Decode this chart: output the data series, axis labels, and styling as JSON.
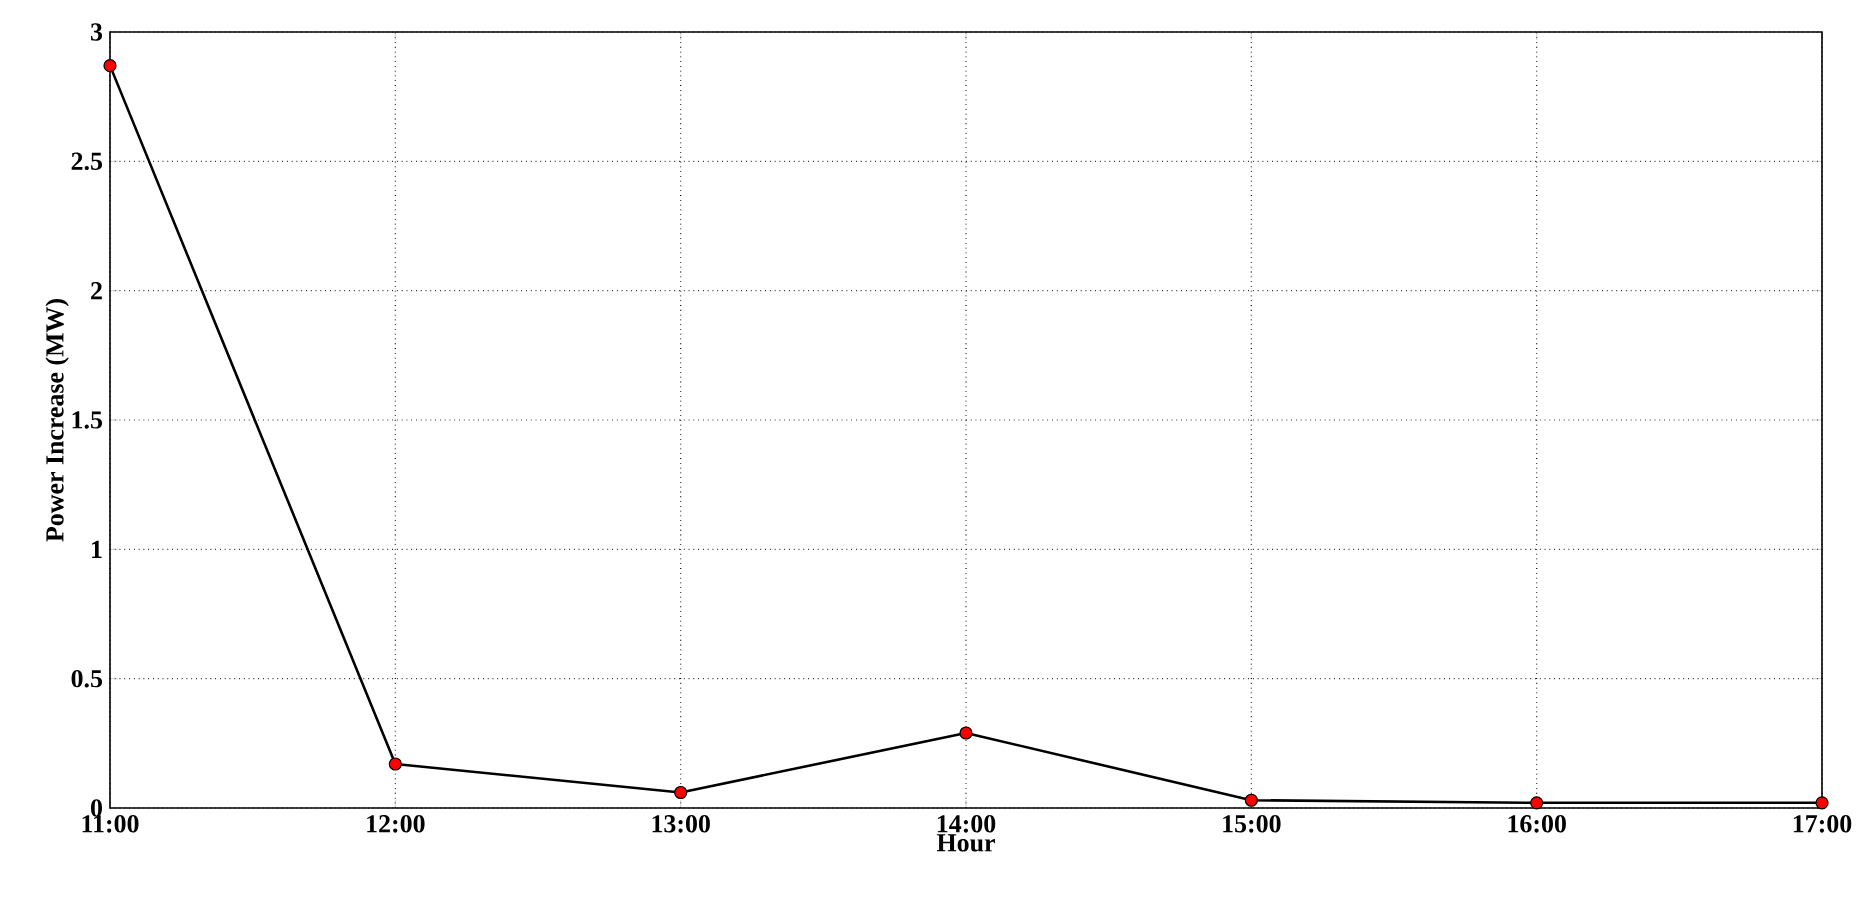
{
  "chart_data": {
    "type": "line",
    "xlabel": "Hour",
    "ylabel": "Power Increase (MW)",
    "x": [
      11,
      12,
      13,
      14,
      15,
      16,
      17
    ],
    "series": [
      {
        "color": "#000000",
        "values": [
          2.87,
          0.17,
          0.06,
          0.29,
          0.03,
          0.02,
          0.02
        ]
      }
    ],
    "xlim": [
      11,
      17
    ],
    "ylim": [
      0,
      3
    ],
    "xticks": [
      {
        "value": 11,
        "label": "11:00"
      },
      {
        "value": 12,
        "label": "12:00"
      },
      {
        "value": 13,
        "label": "13:00"
      },
      {
        "value": 14,
        "label": "14:00"
      },
      {
        "value": 15,
        "label": "15:00"
      },
      {
        "value": 16,
        "label": "16:00"
      },
      {
        "value": 17,
        "label": "17:00"
      }
    ],
    "yticks": [
      0,
      0.5,
      1,
      1.5,
      2,
      2.5,
      3
    ],
    "grid": true,
    "marker": "circle",
    "line_style": "solid"
  }
}
